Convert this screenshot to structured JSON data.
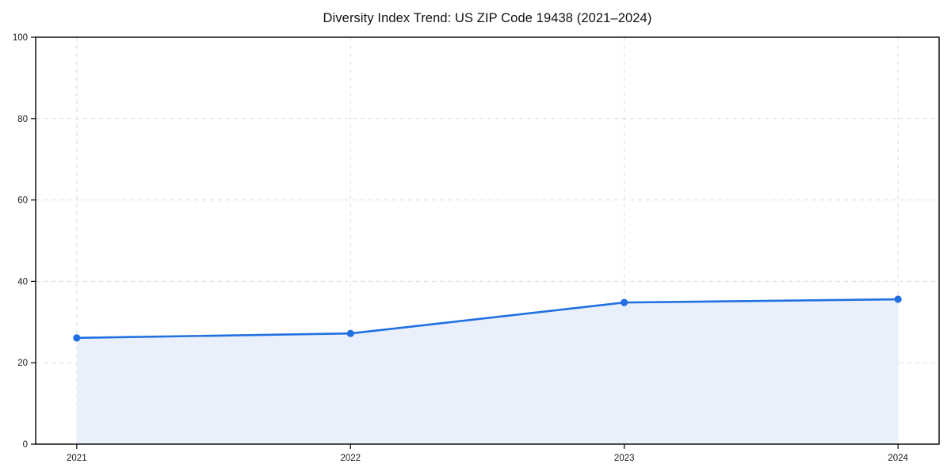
{
  "chart_data": {
    "type": "line",
    "title": "Diversity Index Trend: US ZIP Code 19438 (2021–2024)",
    "categories": [
      "2021",
      "2022",
      "2023",
      "2024"
    ],
    "values": [
      26.1,
      27.2,
      34.8,
      35.6
    ],
    "series_name": "Diversity Index",
    "xlabel": "",
    "ylabel": "",
    "ylim": [
      0,
      100
    ],
    "yticks": [
      0,
      20,
      40,
      60,
      80,
      100
    ],
    "grid": "dashed",
    "legend": "none",
    "area_fill": true,
    "x_margin_frac": 0.05,
    "colors": {
      "line": "#2170E0",
      "marker": "#2170E0",
      "area_fill": "#E9F0FC",
      "grid": "#DCDCDC",
      "axis": "#000000",
      "tick_text": "#1A1A1A",
      "background": "#FFFFFF"
    }
  }
}
